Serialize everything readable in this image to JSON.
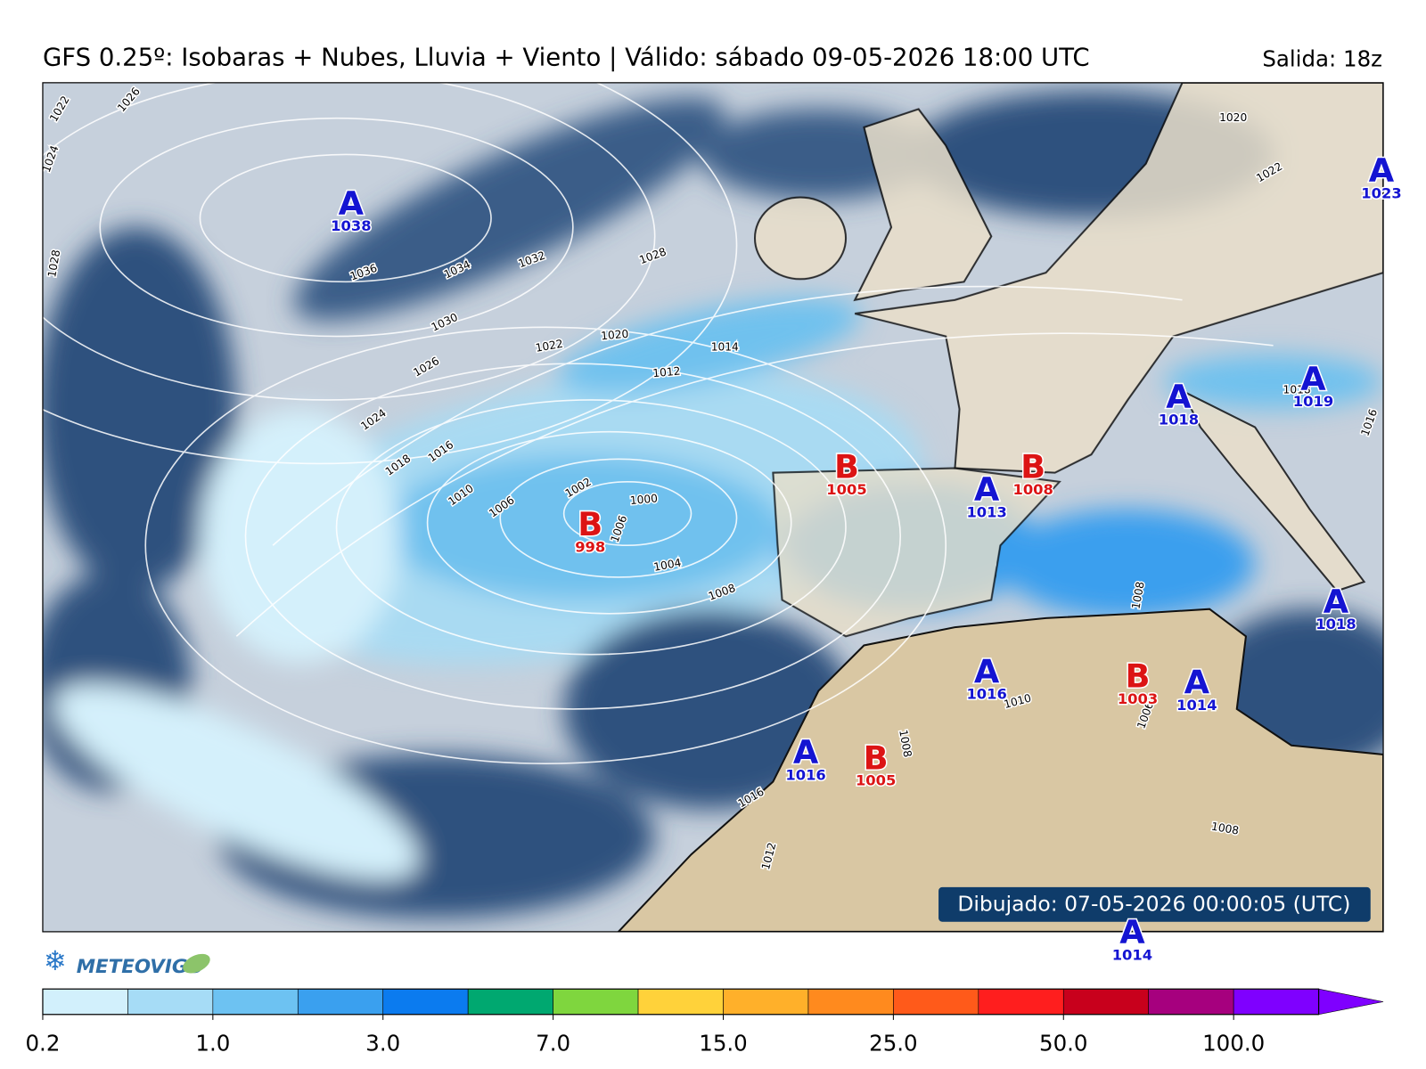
{
  "header": {
    "title": "GFS 0.25º: Isobaras + Nubes, Lluvia + Viento | Válido: sábado 09-05-2026 18:00 UTC",
    "run": "Salida: 18z"
  },
  "map": {
    "centers": [
      {
        "letter": "A",
        "value": "1038"
      },
      {
        "letter": "B",
        "value": "998"
      },
      {
        "letter": "B",
        "value": "1005"
      },
      {
        "letter": "A",
        "value": "1013"
      },
      {
        "letter": "B",
        "value": "1008"
      },
      {
        "letter": "A",
        "value": "1018"
      },
      {
        "letter": "A",
        "value": "1019"
      },
      {
        "letter": "A",
        "value": "1023"
      },
      {
        "letter": "A",
        "value": "1018"
      },
      {
        "letter": "A",
        "value": "1016"
      },
      {
        "letter": "B",
        "value": "1003"
      },
      {
        "letter": "A",
        "value": "1014"
      },
      {
        "letter": "A",
        "value": "1016"
      },
      {
        "letter": "B",
        "value": "1005"
      },
      {
        "letter": "A",
        "value": "1014"
      }
    ],
    "isobar_labels": [
      "1026",
      "1022",
      "1024",
      "1028",
      "1036",
      "1034",
      "1032",
      "1028",
      "1030",
      "1026",
      "1022",
      "1020",
      "1014",
      "1012",
      "1024",
      "1018",
      "1016",
      "1010",
      "1006",
      "1002",
      "1000",
      "1006",
      "1004",
      "1008",
      "1010",
      "1008",
      "1006",
      "1008",
      "1016",
      "1012",
      "1008",
      "1018",
      "1020",
      "1022",
      "1016"
    ],
    "drawn": "Dibujado: 07-05-2026 00:00:05 (UTC)"
  },
  "logo": "METEOVIGO",
  "colorbar": {
    "colors": [
      "#d2f0fc",
      "#a6dcf6",
      "#6dc2f2",
      "#3aa0ef",
      "#0b7bef",
      "#00a870",
      "#7fd63e",
      "#ffd23a",
      "#ffb02a",
      "#ff8a1e",
      "#ff5a1a",
      "#ff1e1e",
      "#c8001c",
      "#a6007e",
      "#7f00ff"
    ],
    "labels": [
      "0.2",
      "1.0",
      "3.0",
      "7.0",
      "15.0",
      "25.0",
      "50.0",
      "100.0"
    ]
  }
}
